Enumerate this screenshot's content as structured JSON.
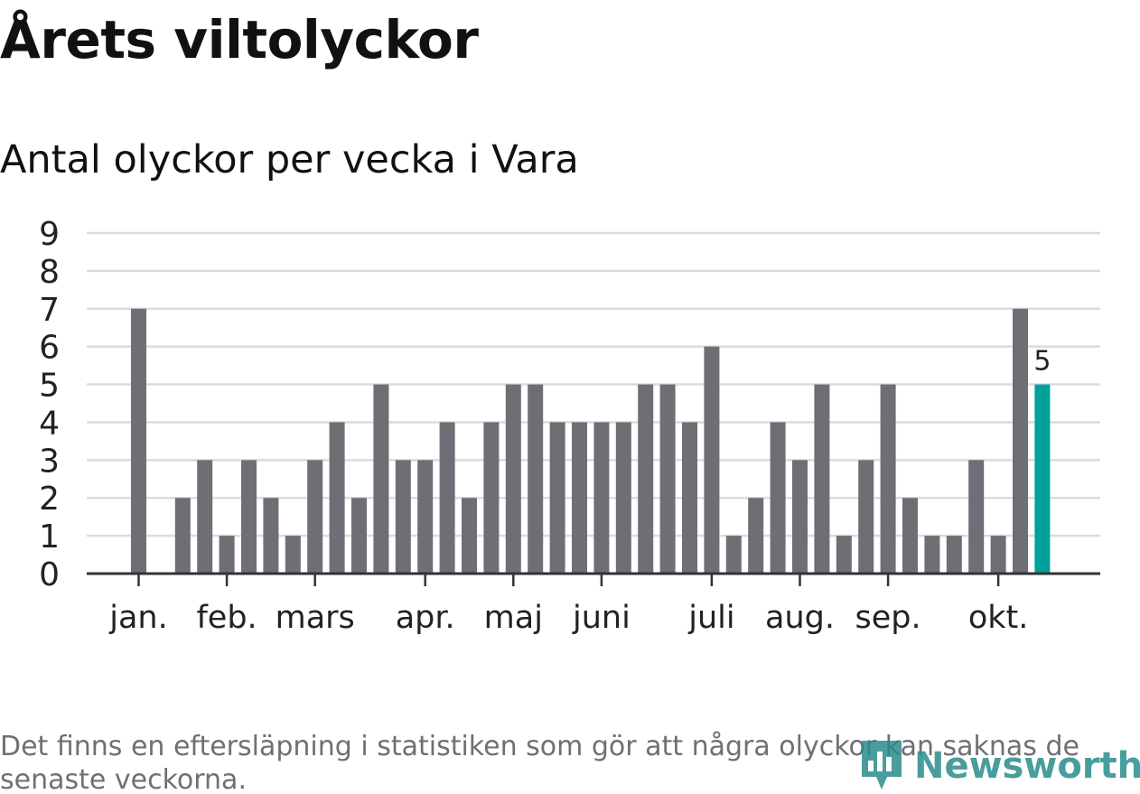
{
  "header": {
    "title": "Årets viltolyckor",
    "subtitle": "Antal olyckor per vecka i Vara"
  },
  "footer": {
    "note": "Det finns en eftersläpning i statistiken som gör att några olyckor kan saknas de senaste veckorna.",
    "brand": "Newsworthy",
    "brand_icon": "chart-pin-icon"
  },
  "colors": {
    "bar": "#6e6e74",
    "highlight": "#00a19a",
    "grid": "#dcdcdc",
    "axis": "#333333",
    "text": "#222222",
    "brand": "#2a8c8c"
  },
  "chart_data": {
    "type": "bar",
    "x_unit": "week",
    "weeks": [
      1,
      2,
      3,
      4,
      5,
      6,
      7,
      8,
      9,
      10,
      11,
      12,
      13,
      14,
      15,
      16,
      17,
      18,
      19,
      20,
      21,
      22,
      23,
      24,
      25,
      26,
      27,
      28,
      29,
      30,
      31,
      32,
      33,
      34,
      35,
      36,
      37,
      38,
      39,
      40,
      41,
      42
    ],
    "values": [
      7,
      0,
      2,
      3,
      1,
      3,
      2,
      1,
      3,
      4,
      2,
      5,
      3,
      3,
      4,
      2,
      4,
      5,
      5,
      4,
      4,
      4,
      4,
      5,
      5,
      4,
      6,
      1,
      2,
      4,
      3,
      5,
      1,
      3,
      5,
      2,
      1,
      1,
      3,
      1,
      7,
      5
    ],
    "highlight_index": 41,
    "highlight_label": "5",
    "ylim": [
      0,
      9
    ],
    "yticks": [
      0,
      1,
      2,
      3,
      4,
      5,
      6,
      7,
      8,
      9
    ],
    "month_ticks": [
      {
        "label": "jan.",
        "week": 1
      },
      {
        "label": "feb.",
        "week": 5
      },
      {
        "label": "mars",
        "week": 9
      },
      {
        "label": "apr.",
        "week": 14
      },
      {
        "label": "maj",
        "week": 18
      },
      {
        "label": "juni",
        "week": 22
      },
      {
        "label": "juli",
        "week": 27
      },
      {
        "label": "aug.",
        "week": 31
      },
      {
        "label": "sep.",
        "week": 35
      },
      {
        "label": "okt.",
        "week": 40
      }
    ],
    "grid": true,
    "legend": false
  }
}
